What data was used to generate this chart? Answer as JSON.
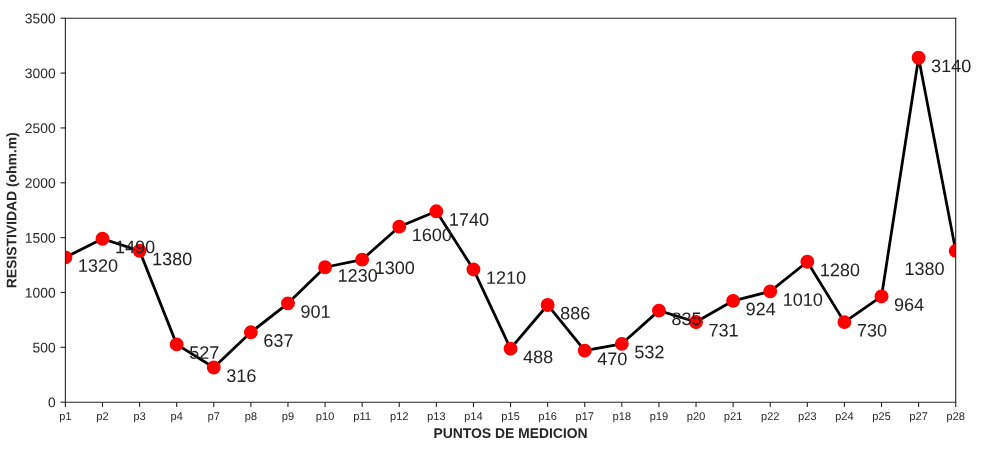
{
  "chart_data": {
    "type": "line",
    "xlabel": "PUNTOS DE MEDICION",
    "ylabel": "RESISTIVIDAD (ohm.m)",
    "categories": [
      "p1",
      "p2",
      "p3",
      "p4",
      "p7",
      "p8",
      "p9",
      "p10",
      "p11",
      "p12",
      "p13",
      "p14",
      "p15",
      "p16",
      "p17",
      "p18",
      "p19",
      "p20",
      "p21",
      "p22",
      "p23",
      "p24",
      "p25",
      "p27",
      "p28"
    ],
    "series": [
      {
        "color": "#ff0000",
        "values": [
          1320,
          1490,
          1380,
          527,
          316,
          637,
          901,
          1230,
          1300,
          1600,
          1740,
          1210,
          488,
          886,
          470,
          532,
          835,
          731,
          924,
          1010,
          1280,
          730,
          964,
          3140,
          1380
        ]
      }
    ],
    "ylim": [
      0,
      3500
    ],
    "yticks": [
      0,
      500,
      1000,
      1500,
      2000,
      2500,
      3000,
      3500
    ],
    "marker": "circle",
    "line_style": "solid",
    "data_labels": true,
    "grid": false,
    "legend": false
  }
}
